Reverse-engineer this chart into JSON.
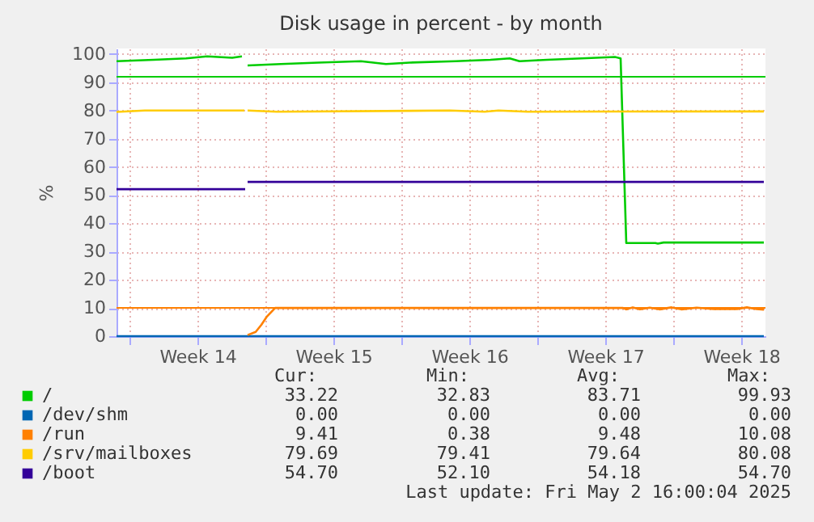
{
  "chart_data": {
    "type": "line",
    "title": "Disk usage in percent - by month",
    "ylabel": "%",
    "xlim": [
      "2025-03-30T08:00",
      "2025-05-02T18:00"
    ],
    "ylim": [
      0,
      102
    ],
    "xticks": [
      {
        "value": "2025-03-31",
        "label": null
      },
      {
        "value": "2025-04-03T12:00",
        "label": "Week 14"
      },
      {
        "value": "2025-04-07",
        "label": null
      },
      {
        "value": "2025-04-10T12:00",
        "label": "Week 15"
      },
      {
        "value": "2025-04-14",
        "label": null
      },
      {
        "value": "2025-04-17T12:00",
        "label": "Week 16"
      },
      {
        "value": "2025-04-21",
        "label": null
      },
      {
        "value": "2025-04-24T12:00",
        "label": "Week 17"
      },
      {
        "value": "2025-04-28",
        "label": null
      },
      {
        "value": "2025-05-01T12:00",
        "label": "Week 18"
      }
    ],
    "yticks": [
      0,
      10,
      20,
      30,
      40,
      50,
      60,
      70,
      80,
      90,
      100
    ],
    "grid": true,
    "legend": "bottom",
    "marker": "none",
    "line_style": "solid",
    "series": [
      {
        "name": "/",
        "color": "#00cc00",
        "x": [
          "2025-03-30T08:00",
          "2025-04-01T06:00",
          "2025-04-02T22:00",
          "2025-04-04T00:00",
          "2025-04-05T07:00",
          "2025-04-05T19:00",
          "2025-04-06T00:00",
          "2025-04-06T02:00",
          "2025-04-07T19:00",
          "2025-04-09T17:00",
          "2025-04-11T22:00",
          "2025-04-13T05:00",
          "2025-04-14T10:00",
          "2025-04-16T19:00",
          "2025-04-18T14:00",
          "2025-04-19T14:00",
          "2025-04-20T02:00",
          "2025-04-21T12:00",
          "2025-04-23T07:00",
          "2025-04-25T00:00",
          "2025-04-25T07:00",
          "2025-04-25T14:00",
          "2025-04-27T02:00",
          "2025-04-27T05:00",
          "2025-04-27T12:00",
          "2025-05-02T16:00"
        ],
        "values": [
          97.5,
          98,
          98.5,
          99.2,
          98.7,
          99.2,
          null,
          96,
          96.5,
          97,
          97.5,
          96.5,
          97,
          97.5,
          98,
          98.5,
          97.5,
          98,
          98.5,
          99,
          98.5,
          33,
          33,
          32.8,
          33.2,
          33.2
        ]
      },
      {
        "name": "/dev/shm",
        "color": "#0066b3",
        "x": [
          "2025-03-30T08:00",
          "2025-05-02T16:00"
        ],
        "values": [
          0,
          0
        ]
      },
      {
        "name": "/run",
        "color": "#ff8000",
        "x": [
          "2025-04-06T02:00",
          "2025-04-06T12:00",
          "2025-04-06T19:00",
          "2025-04-07T02:00",
          "2025-04-07T12:00",
          "2025-04-25T10:00",
          "2025-04-25T14:00",
          "2025-04-25T22:00",
          "2025-04-26T07:00",
          "2025-04-26T19:00",
          "2025-04-27T07:00",
          "2025-04-27T22:00",
          "2025-04-28T10:00",
          "2025-04-29T05:00",
          "2025-04-30T02:00",
          "2025-05-01T07:00",
          "2025-05-01T19:00",
          "2025-05-02T07:00",
          "2025-05-02T16:00"
        ],
        "values": [
          0.4,
          1.5,
          4,
          7,
          10,
          10,
          9.5,
          10.2,
          9.5,
          10.1,
          9.5,
          10.2,
          9.5,
          10.1,
          9.6,
          9.6,
          10.2,
          9.6,
          9.4
        ]
      },
      {
        "name": "/srv/mailboxes",
        "color": "#ffcc00",
        "x": [
          "2025-03-30T08:00",
          "2025-03-31T19:00",
          "2025-04-05T22:00",
          "2025-04-06T00:00",
          "2025-04-06T02:00",
          "2025-04-07T14:00",
          "2025-04-16T12:00",
          "2025-04-18T07:00",
          "2025-04-19T00:00",
          "2025-04-20T12:00",
          "2025-05-02T16:00"
        ],
        "values": [
          79.5,
          80,
          80,
          null,
          80,
          79.6,
          80,
          79.6,
          80,
          79.6,
          79.7
        ]
      },
      {
        "name": "/boot",
        "color": "#330099",
        "x": [
          "2025-03-30T08:00",
          "2025-04-05T23:00",
          "2025-04-06T00:00",
          "2025-04-06T02:00",
          "2025-05-02T16:00"
        ],
        "values": [
          52.1,
          52.1,
          null,
          54.7,
          54.7
        ]
      }
    ],
    "ref_lines": [
      {
        "axis": "y",
        "value": 92,
        "color": "#00cc00"
      },
      {
        "axis": "y",
        "value": 10,
        "color": "#ff8000"
      }
    ],
    "annotations": [
      "Cur:",
      "Min:",
      "Avg:",
      "Max:",
      "33.22",
      "32.83",
      "83.71",
      "99.93",
      "0.00",
      "0.00",
      "0.00",
      "0.00",
      "9.41",
      "0.38",
      "9.48",
      "10.08",
      "79.69",
      "79.41",
      "79.64",
      "80.08",
      "54.70",
      "52.10",
      "54.18",
      "54.70",
      "Last update: Fri May  2 16:00:04 2025"
    ]
  }
}
